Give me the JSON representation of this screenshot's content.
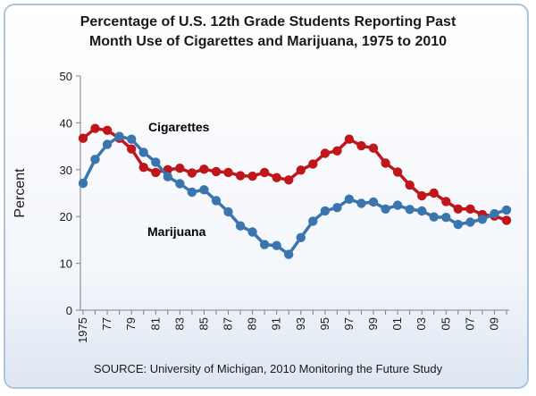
{
  "chart_data": {
    "type": "line",
    "title_line1": "Percentage of U.S. 12th Grade Students Reporting Past",
    "title_line2": "Month Use of Cigarettes and Marijuana, 1975 to 2010",
    "ylabel": "Percent",
    "xlabel": "",
    "source": "SOURCE: University of Michigan, 2010 Monitoring the Future Study",
    "ylim": [
      0,
      50
    ],
    "yticks": [
      0,
      10,
      20,
      30,
      40,
      50
    ],
    "grid": false,
    "x": [
      1975,
      1976,
      1977,
      1978,
      1979,
      1980,
      1981,
      1982,
      1983,
      1984,
      1985,
      1986,
      1987,
      1988,
      1989,
      1990,
      1991,
      1992,
      1993,
      1994,
      1995,
      1996,
      1997,
      1998,
      1999,
      2000,
      2001,
      2002,
      2003,
      2004,
      2005,
      2006,
      2007,
      2008,
      2009,
      2010
    ],
    "xtick_labels": [
      "1975",
      "77",
      "79",
      "81",
      "83",
      "85",
      "87",
      "89",
      "91",
      "93",
      "95",
      "97",
      "99",
      "01",
      "03",
      "05",
      "07",
      "09"
    ],
    "series": [
      {
        "name": "Cigarettes",
        "color": "#c0161b",
        "values": [
          36.7,
          38.8,
          38.4,
          36.7,
          34.4,
          30.5,
          29.4,
          30.0,
          30.3,
          29.3,
          30.1,
          29.6,
          29.4,
          28.7,
          28.6,
          29.4,
          28.3,
          27.8,
          29.9,
          31.2,
          33.5,
          34.0,
          36.5,
          35.1,
          34.6,
          31.4,
          29.5,
          26.7,
          24.4,
          25.0,
          23.2,
          21.6,
          21.6,
          20.4,
          20.1,
          19.2
        ]
      },
      {
        "name": "Marijuana",
        "color": "#3b75ae",
        "values": [
          27.1,
          32.2,
          35.4,
          37.1,
          36.5,
          33.7,
          31.6,
          28.5,
          27.0,
          25.2,
          25.7,
          23.4,
          21.0,
          18.0,
          16.7,
          14.0,
          13.8,
          11.9,
          15.5,
          19.0,
          21.2,
          21.9,
          23.7,
          22.8,
          23.1,
          21.6,
          22.4,
          21.5,
          21.2,
          19.9,
          19.8,
          18.3,
          18.8,
          19.4,
          20.6,
          21.4
        ]
      }
    ]
  }
}
